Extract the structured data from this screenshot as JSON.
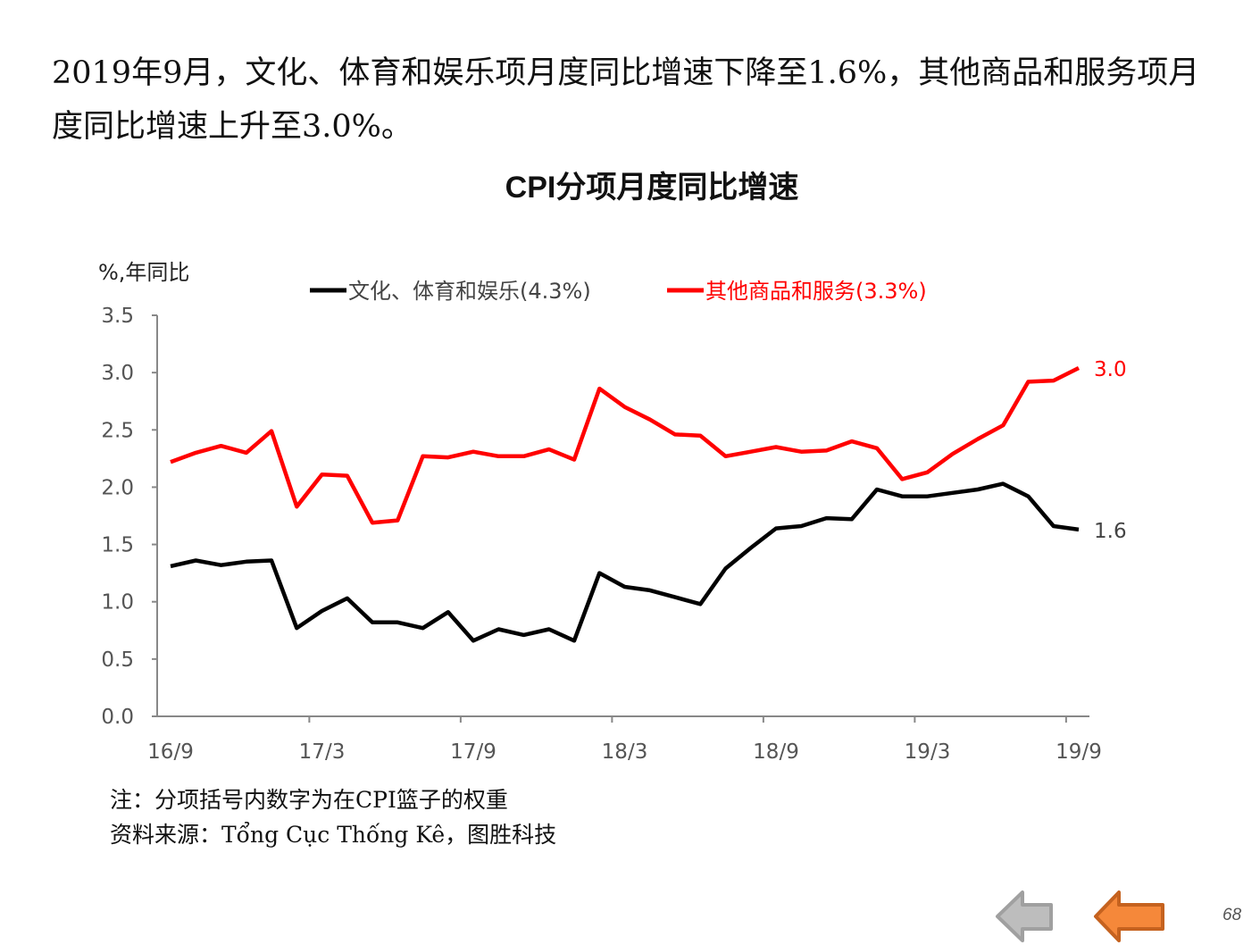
{
  "headline": "2019年9月，文化、体育和娱乐项月度同比增速下降至1.6%，其他商品和服务项月度同比增速上升至3.0%。",
  "chart_data": {
    "type": "line",
    "title": "CPI分项月度同比增速",
    "ylabel": "%,年同比",
    "xlabel": "",
    "ylim": [
      0,
      3.5
    ],
    "yticks": [
      "0.0",
      "0.5",
      "1.0",
      "1.5",
      "2.0",
      "2.5",
      "3.0",
      "3.5"
    ],
    "xtick_labels": [
      "16/9",
      "17/3",
      "17/9",
      "18/3",
      "18/9",
      "19/3",
      "19/9"
    ],
    "x_start": "2016-09",
    "x_end": "2019-09",
    "legend_placement": "top",
    "series": [
      {
        "name": "文化、体育和娱乐(4.3%)",
        "color": "#000000",
        "end_label": "1.6",
        "values": [
          1.31,
          1.36,
          1.32,
          1.35,
          1.36,
          0.77,
          0.92,
          1.03,
          0.82,
          0.82,
          0.77,
          0.91,
          0.66,
          0.76,
          0.71,
          0.76,
          0.66,
          1.25,
          1.13,
          1.1,
          1.04,
          0.98,
          1.29,
          1.47,
          1.64,
          1.66,
          1.73,
          1.72,
          1.98,
          1.92,
          1.92,
          1.95,
          1.98,
          2.03,
          1.92,
          1.66,
          1.63
        ]
      },
      {
        "name": "其他商品和服务(3.3%)",
        "color": "#ff0000",
        "end_label": "3.0",
        "values": [
          2.22,
          2.3,
          2.36,
          2.3,
          2.49,
          1.83,
          2.11,
          2.1,
          1.69,
          1.71,
          2.27,
          2.26,
          2.31,
          2.27,
          2.27,
          2.33,
          2.24,
          2.86,
          2.7,
          2.59,
          2.46,
          2.45,
          2.27,
          2.31,
          2.35,
          2.31,
          2.32,
          2.4,
          2.34,
          2.07,
          2.13,
          2.29,
          2.42,
          2.54,
          2.92,
          2.93,
          3.04
        ]
      }
    ]
  },
  "notes": {
    "note": "注：分项括号内数字为在CPI篮子的权重",
    "source": "资料来源：Tổng Cục Thống Kê，图胜科技"
  },
  "nav": {
    "prev_icon": "arrow-left-gray",
    "next_icon": "arrow-left-orange",
    "page_number": "68"
  }
}
